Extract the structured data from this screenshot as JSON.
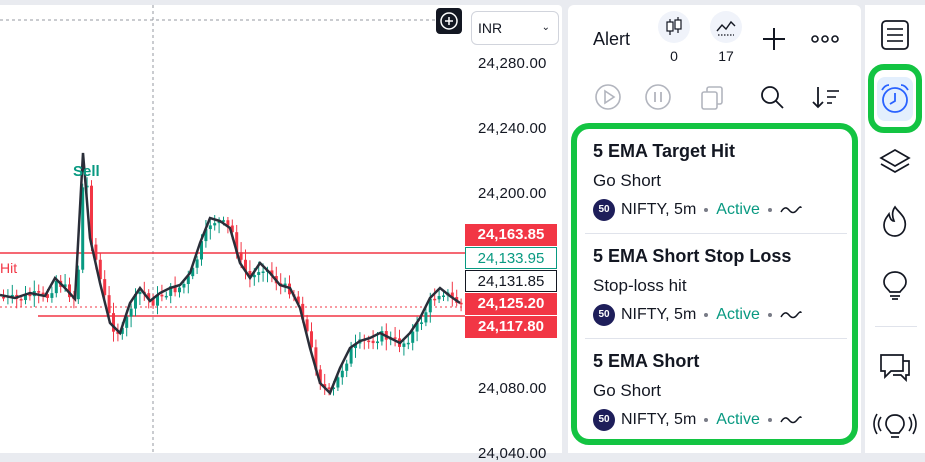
{
  "chart": {
    "currency": "INR",
    "price_axis": [
      "24,280.00",
      "24,240.00",
      "24,200.00",
      "24,080.00",
      "24,040.00"
    ],
    "price_tags": {
      "red_top": "24,163.85",
      "teal": "24,133.95",
      "plain": "24,131.85",
      "red_mid": "24,125.20",
      "red_low": "24,117.80"
    },
    "sell_label": "Sell",
    "hit_label": "Hit",
    "colors": {
      "up": "#089981",
      "down": "#f23645",
      "ema": "#2a2e39",
      "line": "#f23645"
    }
  },
  "alert_panel": {
    "title": "Alert",
    "stats": [
      {
        "icon": "candles-icon",
        "count": "0"
      },
      {
        "icon": "chart-line-icon",
        "count": "17"
      }
    ],
    "items": [
      {
        "name": "5 EMA Target Hit",
        "message": "Go Short",
        "badge": "50",
        "symbol": "NIFTY, 5m",
        "status": "Active"
      },
      {
        "name": "5 EMA Short Stop Loss",
        "message": "Stop-loss hit",
        "badge": "50",
        "symbol": "NIFTY, 5m",
        "status": "Active"
      },
      {
        "name": "5 EMA Short",
        "message": "Go Short",
        "badge": "50",
        "symbol": "NIFTY, 5m",
        "status": "Active"
      }
    ],
    "highlight_color": "#13c442"
  },
  "toolbar": {
    "icons": [
      "watchlist-icon",
      "alarm-clock-icon",
      "layers-icon",
      "flame-icon",
      "lightbulb-icon",
      "chat-icon",
      "idea-broadcast-icon"
    ]
  }
}
